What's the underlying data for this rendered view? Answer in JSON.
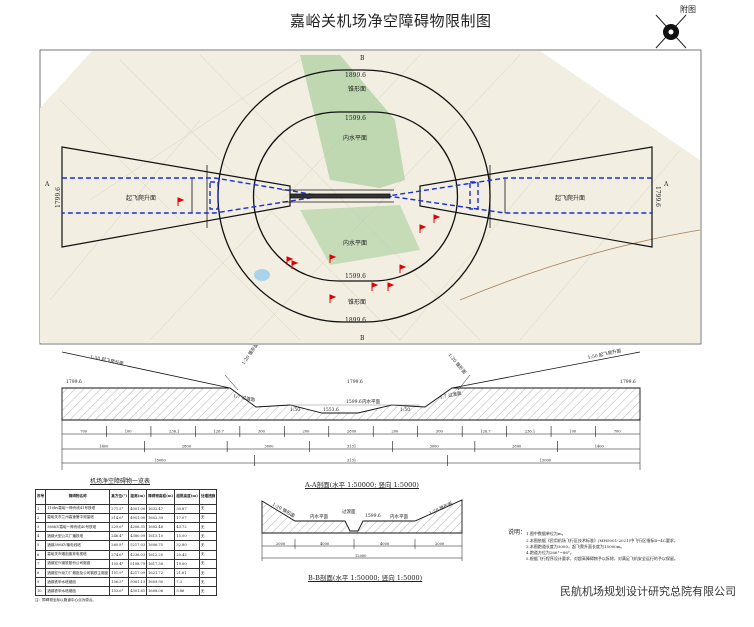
{
  "title": "嘉峪关机场净空障碍物限制图",
  "figure_label": "附图",
  "map": {
    "surfaces": {
      "conical": "锥形面",
      "inner_horizontal": "内水平面",
      "takeoff_climb": "起飞爬升面"
    },
    "elevations": {
      "conical_top": "1899.6",
      "inner_horizontal": "1599.6",
      "takeoff_end": "1799.6"
    },
    "section_markers": {
      "a": "A",
      "b": "B"
    },
    "colors": {
      "approach_dashed": "#1a2fd6",
      "obstacle_flag": "#e00000",
      "greenland": "#a9cf9c",
      "map_bg": "#f2efe2"
    }
  },
  "section_a": {
    "caption": "A-A剖面(水平 1:50000; 竖向 1:5000)",
    "labels": {
      "takeoff_left": "1:50 起飞爬升面",
      "takeoff_right": "1:50 起飞爬升面",
      "conical_left": "1:20 锥形面",
      "conical_right": "1:20 锥形面",
      "transition_left": "1:7 过渡面",
      "transition_right": "1:7 过渡面",
      "inner": "内水平面",
      "slope_left": "1:50",
      "slope_right": "1:50"
    },
    "elev_left": "1799.6",
    "elev_right": "1799.6",
    "elev_mid_left": "1799.6",
    "elev_mid_right": "1599.6",
    "elev_runway": "1553.6",
    "elev_runway2": "1553.4",
    "dims_row1": [
      "700",
      "100",
      "236.1",
      "126.7",
      "300",
      "200",
      "2800",
      "200",
      "300",
      "126.7",
      "236.1",
      "100",
      "700"
    ],
    "dims_row2": [
      "1400",
      "2800",
      "3000",
      "3131",
      "3000",
      "2800",
      "1400"
    ],
    "dims_row3": [
      "15000",
      "3131",
      "15000"
    ]
  },
  "section_b": {
    "caption": "B-B剖面(水平 1:50000; 竖向 1:5000)",
    "labels": {
      "conical_left": "1:20 锥形面",
      "conical_right": "1:20 锥形面",
      "inner_left": "内水平面",
      "inner_right": "内水平面",
      "transition": "过渡面"
    },
    "elev": "1599.6",
    "dims_row1": [
      "2000",
      "4000",
      "4000",
      "2000"
    ],
    "dims_row2": [
      "12000"
    ]
  },
  "obstacle_table": {
    "caption": "机场净空障碍物一览表",
    "headers": [
      "序号",
      "障碍物名称",
      "真方位(°)",
      "距离(m)",
      "障碍物高程(m)",
      "超限高度(m)",
      "处理措施"
    ],
    "rows": [
      [
        "1",
        "110kv嘉峪一神舟线41号铁塔",
        "271.5°",
        "4001.00",
        "1632.47",
        "30.87",
        "无"
      ],
      [
        "2",
        "嘉峪关市兰州高速第中测量塔",
        "214.6°",
        "4951.00",
        "1602.39",
        "17.07",
        "无"
      ],
      [
        "3",
        "380KV嘉峪一神舟线40号铁塔",
        "229.6°",
        "4206.31",
        "1602.46",
        "43.72",
        "无"
      ],
      [
        "4",
        "酒钢大型公共广播铁塔",
        "246.4°",
        "4380.09",
        "1615.10",
        "15.00",
        "无"
      ],
      [
        "5",
        "酒钢380KV输电线塔",
        "260.8°",
        "5217.03",
        "1606.75",
        "32.80",
        "无"
      ],
      [
        "6",
        "嘉峪关市烟囱废弃电视塔",
        "274.6°",
        "4236.03",
        "1612.20",
        "25.42",
        "无"
      ],
      [
        "7",
        "酒钢宏兴钢铁股份公司烟囱",
        "155.4°",
        "5108.79",
        "1617.58",
        "19.00",
        "无"
      ],
      [
        "8",
        "酒钢宏兴动力厂烟囱及公司钢铁主烟囱",
        "151.9°",
        "4217.09",
        "1621.72",
        "21.61",
        "无"
      ],
      [
        "9",
        "酒钢铁甲水塔烟囱",
        "156.5°",
        "5081.13",
        "1609.90",
        "7.3",
        "无"
      ],
      [
        "10",
        "酒钢铁甲水塔烟囱",
        "153.6°",
        "4301.61",
        "1608.06",
        "5.86",
        "无"
      ]
    ],
    "note": "注：障碍物坐标以跑道中心点为原点。"
  },
  "notes": {
    "heading": "说明：",
    "items": [
      "1.图中数据单位为m。",
      "2.本图依据《民用机场飞行区技术标准》(MH5001-2021)中飞行区指标Ⅱ~4C要求。",
      "3.本图跑道长度为3000，起飞爬升面长度为15000m。",
      "4.跑道方位为266°~86°。",
      "5.根据飞行程序设计要求，对超高障碍物予以拆除，对满足飞机安全运行的予以保留。"
    ]
  },
  "company": "民航机场规划设计研究总院有限公司"
}
